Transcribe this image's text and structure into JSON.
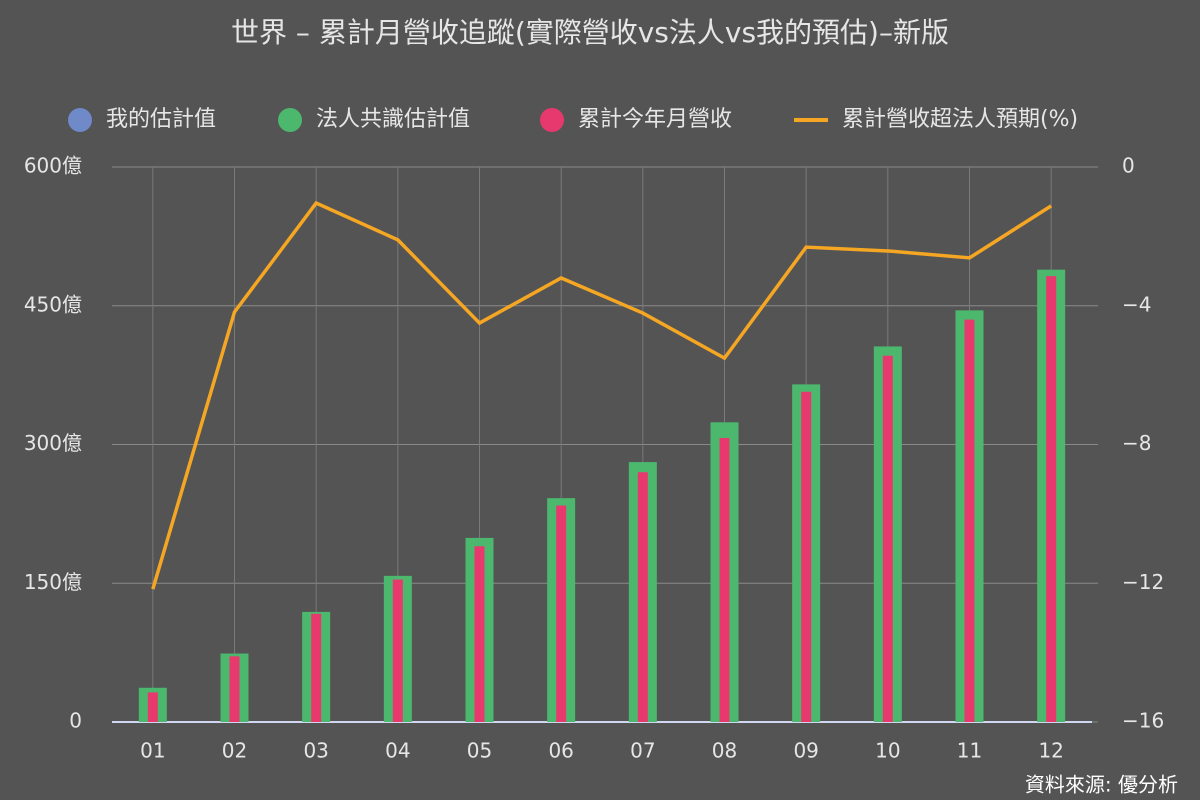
{
  "chart_data": {
    "type": "bar",
    "title": "世界 – 累計月營收追蹤(實際營收vs法人vs我的預估)–新版",
    "source": "資料來源: 優分析",
    "categories": [
      "01",
      "02",
      "03",
      "04",
      "05",
      "06",
      "07",
      "08",
      "09",
      "10",
      "11",
      "12"
    ],
    "series": [
      {
        "name": "我的估計值",
        "color": "#7089c9",
        "type": "bar",
        "values": [
          null,
          null,
          null,
          null,
          null,
          null,
          null,
          null,
          null,
          null,
          null,
          null
        ]
      },
      {
        "name": "法人共識估計值",
        "color": "#4cb86e",
        "type": "bar",
        "values": [
          37,
          74,
          119,
          158,
          199,
          242,
          281,
          324,
          365,
          406,
          445,
          489
        ]
      },
      {
        "name": "累計今年月營收",
        "color": "#e8396f",
        "type": "bar",
        "values": [
          32,
          71,
          117,
          154,
          190,
          234,
          270,
          307,
          357,
          396,
          435,
          482
        ]
      },
      {
        "name": "累計營收超法人預期(%)",
        "color": "#f5a623",
        "type": "line",
        "axis": "y2",
        "values": [
          -12.17,
          -4.18,
          -1.04,
          -2.1,
          -4.5,
          -3.2,
          -4.21,
          -5.51,
          -2.31,
          -2.42,
          -2.62,
          -1.12
        ]
      }
    ],
    "ylim": [
      0,
      600
    ],
    "yticks": [
      0,
      {
        "value": 150,
        "label": "150億"
      },
      {
        "value": 300,
        "label": "300億"
      },
      {
        "value": 450,
        "label": "450億"
      },
      {
        "value": 600,
        "label": "600億"
      }
    ],
    "y2lim": [
      -16,
      0
    ],
    "y2ticks": [
      {
        "value": -16,
        "label": "−16"
      },
      {
        "value": -12,
        "label": "−12"
      },
      {
        "value": -8,
        "label": "−8"
      },
      {
        "value": -4,
        "label": "−4"
      },
      0
    ],
    "grid": true
  }
}
